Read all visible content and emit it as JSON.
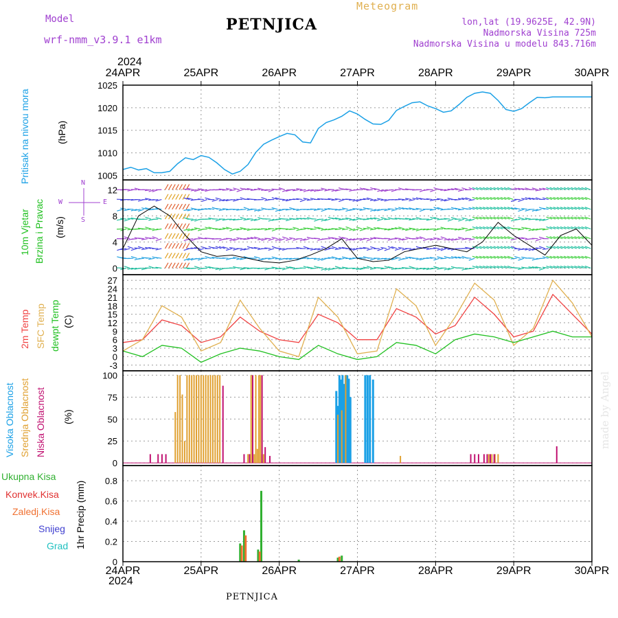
{
  "header": {
    "model_label": "Model",
    "model_name": "wrf-nmm_v3.9.1  e1km",
    "title": "PETNJICA",
    "meteogram": "Meteogram",
    "lonlat": "lon,lat (19.9625E, 42.9N)",
    "altitude": "Nadmorska Visina 725m",
    "model_altitude": "Nadmorska Visina u modelu 843.716m",
    "year_top": "2024",
    "year_bottom": "2024",
    "footer": "PETNJICA",
    "credit": "made by Angel"
  },
  "dates": [
    "24APR",
    "25APR",
    "26APR",
    "27APR",
    "28APR",
    "29APR",
    "30APR"
  ],
  "panel_labels": {
    "pressure_name": "Pritisak na nivou mora",
    "pressure_unit": "(hPa)",
    "wind_name1": "10m Vjetar",
    "wind_name2": "Brzina i Pravac",
    "wind_unit": "(m/s)",
    "compass_n": "N",
    "compass_s": "S",
    "compass_w": "W",
    "compass_e": "E",
    "temp_2m": "2m Temp",
    "temp_sfc": "SFC Temp",
    "temp_dew": "dewpt Temp",
    "temp_unit": "(C)",
    "cloud_high": "Visoka Oblacnost",
    "cloud_mid": "Srednja Oblacnost",
    "cloud_low": "Niska Oblacnost",
    "cloud_unit": "(%)",
    "precip_total": "Ukupna Kisa",
    "precip_conv": "Konvek.Kisa",
    "precip_frozen": "Zaledj.Kisa",
    "precip_snow": "Snijeg",
    "precip_hail": "Grad",
    "precip_unit": "1hr Precip (mm)"
  },
  "colors": {
    "pressure": "#1aa0e6",
    "temp2m": "#f04040",
    "sfc": "#e0b050",
    "dew": "#20c020",
    "cloud_high": "#1aa0e6",
    "cloud_mid": "#e0a030",
    "cloud_low": "#c01070",
    "total": "#30b030",
    "conv": "#e03030",
    "frozen": "#f07030",
    "snow": "#4040d0",
    "hail": "#20c0c0"
  },
  "chart_data": [
    {
      "type": "line",
      "name": "pressure",
      "ylim": [
        1004,
        1025
      ],
      "yticks": [
        1005,
        1010,
        1015,
        1020,
        1025
      ],
      "x": [
        0,
        0.1,
        0.2,
        0.3,
        0.4,
        0.5,
        0.6,
        0.7,
        0.8,
        0.9,
        1.0,
        1.1,
        1.2,
        1.3,
        1.4,
        1.5,
        1.6,
        1.7,
        1.8,
        1.9,
        2.0,
        2.1,
        2.2,
        2.3,
        2.4,
        2.5,
        2.6,
        2.7,
        2.8,
        2.9,
        3.0,
        3.1,
        3.2,
        3.3,
        3.4,
        3.5,
        3.6,
        3.7,
        3.8,
        3.9,
        4.0,
        4.1,
        4.2,
        4.3,
        4.4,
        4.5,
        4.6,
        4.7,
        4.8,
        4.9,
        5.0,
        5.1,
        5.2,
        5.3,
        5.4,
        5.5,
        5.6,
        5.7,
        5.8,
        5.9,
        6.0
      ],
      "values": [
        1006.3,
        1006.8,
        1006.2,
        1006.5,
        1005.6,
        1005.6,
        1005.9,
        1007.6,
        1008.9,
        1008.5,
        1009.4,
        1009.0,
        1007.8,
        1006.3,
        1005.3,
        1005.9,
        1007.4,
        1010.1,
        1011.9,
        1012.8,
        1013.6,
        1014.3,
        1014.0,
        1012.4,
        1012.2,
        1015.4,
        1016.7,
        1017.3,
        1018.1,
        1019.3,
        1018.6,
        1017.4,
        1016.4,
        1016.3,
        1017.2,
        1019.4,
        1020.3,
        1021.1,
        1021.3,
        1020.4,
        1019.8,
        1019.0,
        1019.3,
        1020.7,
        1022.3,
        1023.2,
        1023.5,
        1023.2,
        1021.6,
        1019.6,
        1019.2,
        1019.8,
        1021.1,
        1022.3,
        1022.2,
        1022.4,
        1022.4,
        1022.4,
        1022.4,
        1022.4,
        1022.4
      ]
    },
    {
      "type": "line",
      "name": "wind_speed",
      "ylim": [
        -1,
        13.5
      ],
      "yticks": [
        0,
        4,
        8,
        12
      ],
      "x": [
        0,
        0.2,
        0.4,
        0.6,
        0.8,
        1.0,
        1.2,
        1.4,
        1.6,
        1.8,
        2.0,
        2.2,
        2.4,
        2.6,
        2.8,
        3.0,
        3.2,
        3.4,
        3.6,
        3.8,
        4.0,
        4.2,
        4.4,
        4.6,
        4.8,
        5.0,
        5.2,
        5.4,
        5.6,
        5.8,
        6.0
      ],
      "values": [
        3,
        8,
        9.5,
        8,
        5,
        2.5,
        1.8,
        2,
        1.5,
        1,
        0.8,
        1.2,
        2,
        3,
        4.5,
        1.5,
        1,
        1.2,
        2.5,
        3,
        3.5,
        3,
        2.5,
        4,
        7,
        5,
        3.5,
        2,
        5,
        6,
        3.5
      ]
    },
    {
      "type": "line",
      "series": [
        {
          "key": "temp2m",
          "x": [
            0,
            0.25,
            0.5,
            0.75,
            1.0,
            1.25,
            1.5,
            1.75,
            2.0,
            2.25,
            2.5,
            2.75,
            3.0,
            3.25,
            3.5,
            3.75,
            4.0,
            4.25,
            4.5,
            4.75,
            5.0,
            5.25,
            5.5,
            5.75,
            6.0
          ],
          "values": [
            5,
            6,
            13,
            11,
            5,
            7,
            14,
            9,
            6,
            5,
            15,
            12,
            6,
            6,
            17,
            14,
            8,
            11,
            21,
            15,
            7,
            9,
            22,
            15,
            8
          ]
        },
        {
          "key": "sfc",
          "x": [
            0,
            0.25,
            0.5,
            0.75,
            1.0,
            1.25,
            1.5,
            1.75,
            2.0,
            2.25,
            2.5,
            2.75,
            3.0,
            3.25,
            3.5,
            3.75,
            4.0,
            4.25,
            4.5,
            4.75,
            5.0,
            5.25,
            5.5,
            5.75,
            6.0
          ],
          "values": [
            2,
            6,
            18,
            14,
            2,
            5,
            20,
            10,
            2,
            0,
            21,
            14,
            1,
            2,
            24,
            18,
            4,
            14,
            26,
            20,
            4,
            10,
            27,
            19,
            7
          ]
        },
        {
          "key": "dew",
          "x": [
            0,
            0.25,
            0.5,
            0.75,
            1.0,
            1.25,
            1.5,
            1.75,
            2.0,
            2.25,
            2.5,
            2.75,
            3.0,
            3.25,
            3.5,
            3.75,
            4.0,
            4.25,
            4.5,
            4.75,
            5.0,
            5.25,
            5.5,
            5.75,
            6.0
          ],
          "values": [
            2,
            0,
            4,
            3,
            -2,
            1,
            3,
            2,
            0,
            -1,
            4,
            1,
            -1,
            0,
            5,
            4,
            1,
            6,
            8,
            7,
            5,
            7,
            9,
            7,
            7
          ]
        }
      ],
      "ylim": [
        -5,
        29
      ],
      "yticks": [
        -3,
        0,
        3,
        6,
        9,
        12,
        15,
        18,
        21,
        24,
        27
      ]
    },
    {
      "type": "bar",
      "name": "cloud_cover",
      "ylim": [
        -3,
        105
      ],
      "yticks": [
        0,
        25,
        50,
        75,
        100
      ],
      "series": [
        {
          "key": "cloud_high",
          "x": [
            2.73,
            2.75,
            2.77,
            2.79,
            2.81,
            2.83,
            2.85,
            2.87,
            2.89,
            2.91,
            3.1,
            3.13,
            3.16,
            3.2
          ],
          "values": [
            82,
            65,
            100,
            95,
            100,
            90,
            100,
            100,
            96,
            75,
            100,
            100,
            100,
            95
          ]
        },
        {
          "key": "cloud_mid",
          "x": [
            0.67,
            0.7,
            0.73,
            0.76,
            0.79,
            0.82,
            0.85,
            0.88,
            0.91,
            0.94,
            0.97,
            1.0,
            1.03,
            1.06,
            1.09,
            1.12,
            1.15,
            1.18,
            1.21,
            1.24,
            1.6,
            1.62,
            1.64,
            1.66,
            1.68,
            1.7,
            1.72,
            1.74,
            1.76,
            1.78,
            1.8,
            2.75,
            2.8,
            2.85,
            3.55,
            4.68,
            4.72,
            4.76,
            4.8
          ],
          "values": [
            58,
            100,
            100,
            78,
            25,
            100,
            100,
            100,
            100,
            100,
            100,
            100,
            100,
            100,
            100,
            100,
            100,
            100,
            100,
            100,
            10,
            10,
            100,
            100,
            10,
            100,
            16,
            100,
            100,
            10,
            10,
            55,
            60,
            100,
            8,
            10,
            10,
            10,
            10
          ]
        },
        {
          "key": "cloud_low",
          "x": [
            0.35,
            0.45,
            0.5,
            0.55,
            1.28,
            1.55,
            1.62,
            1.66,
            1.78,
            1.82,
            1.88,
            4.45,
            4.5,
            4.55,
            4.62,
            4.66,
            4.7,
            4.75,
            5.55
          ],
          "values": [
            10,
            10,
            10,
            10,
            88,
            10,
            10,
            100,
            100,
            18,
            8,
            10,
            10,
            10,
            10,
            10,
            10,
            10,
            19
          ]
        }
      ]
    },
    {
      "type": "bar",
      "name": "precip",
      "ylim": [
        0,
        0.95
      ],
      "yticks": [
        0,
        0.2,
        0.4,
        0.6,
        0.8
      ],
      "series": [
        {
          "key": "total",
          "x": [
            1.5,
            1.55,
            1.73,
            1.77,
            2.25,
            2.75,
            2.8
          ],
          "values": [
            0.18,
            0.31,
            0.12,
            0.7,
            0.02,
            0.04,
            0.06
          ]
        },
        {
          "key": "frozen",
          "x": [
            1.52,
            1.57,
            1.75,
            2.77
          ],
          "values": [
            0.16,
            0.26,
            0.1,
            0.05
          ]
        }
      ]
    }
  ]
}
